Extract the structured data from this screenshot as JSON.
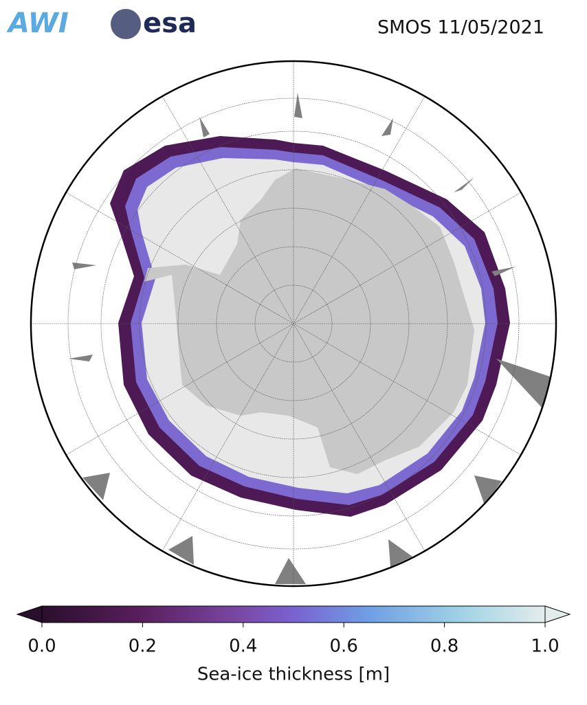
{
  "header": {
    "logos": [
      "AWI",
      "esa"
    ],
    "title": "SMOS 11/05/2021"
  },
  "colorbar": {
    "label": "Sea-ice thickness [m]",
    "lim": [
      0,
      1
    ],
    "ticks": [
      {
        "value": 0,
        "label": "0.0"
      },
      {
        "value": 0.2,
        "label": "0.2"
      },
      {
        "value": 0.4,
        "label": "0.4"
      },
      {
        "value": 0.6,
        "label": "0.6"
      },
      {
        "value": 0.8,
        "label": "0.8"
      },
      {
        "value": 1,
        "label": "1.0"
      }
    ]
  }
}
